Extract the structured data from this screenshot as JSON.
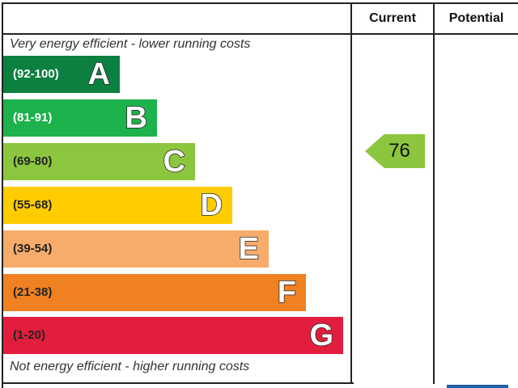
{
  "header": {
    "current": "Current",
    "potential": "Potential"
  },
  "notes": {
    "top": "Very energy efficient - lower running costs",
    "bottom": "Not energy efficient - higher running costs"
  },
  "chart_data": {
    "type": "bar",
    "categories": [
      "A",
      "B",
      "C",
      "D",
      "E",
      "F",
      "G"
    ],
    "ranges": [
      "(92-100)",
      "(81-91)",
      "(69-80)",
      "(55-68)",
      "(39-54)",
      "(21-38)",
      "(1-20)"
    ],
    "colors": [
      "#0c8040",
      "#1db24b",
      "#8cc63f",
      "#ffcc00",
      "#f7ac6b",
      "#ef8123",
      "#e31d3d"
    ],
    "range_text_colors": [
      "#ffffff",
      "#ffffff",
      "#222222",
      "#222222",
      "#222222",
      "#222222",
      "#222222"
    ],
    "current": {
      "value": "76",
      "band": "C",
      "color": "#8cc63f"
    },
    "potential": null
  }
}
